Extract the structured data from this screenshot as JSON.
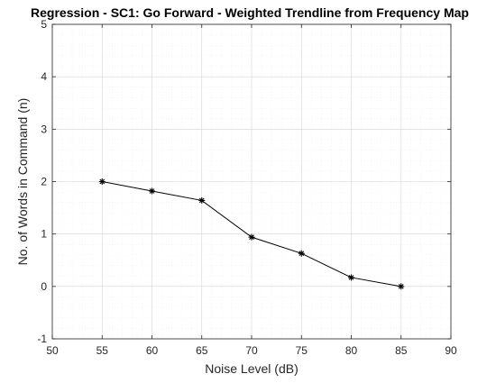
{
  "chart_data": {
    "type": "line",
    "title": "Regression - SC1: Go Forward - Weighted Trendline from Frequency Map",
    "xlabel": "Noise Level (dB)",
    "ylabel": "No. of Words in Command (n)",
    "xlim": [
      50,
      90
    ],
    "ylim": [
      -1,
      5
    ],
    "xticks": [
      50,
      55,
      60,
      65,
      70,
      75,
      80,
      85,
      90
    ],
    "yticks": [
      -1,
      0,
      1,
      2,
      3,
      4,
      5
    ],
    "grid": true,
    "minor_grid": true,
    "legend": "none",
    "series": [
      {
        "x": [
          55,
          60,
          65,
          70,
          75,
          80,
          85
        ],
        "y": [
          2.0,
          1.82,
          1.64,
          0.94,
          0.63,
          0.17,
          0.0
        ],
        "marker": "asterisk",
        "color": "#000000"
      }
    ]
  }
}
